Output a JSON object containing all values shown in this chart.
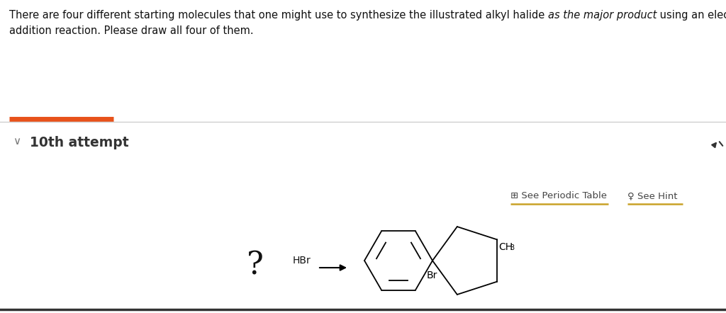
{
  "bg_color": "#ffffff",
  "text_color": "#111111",
  "orange_bar_color": "#e8521a",
  "separator_color": "#d0d0d0",
  "link_color": "#c9a227",
  "attempt_color": "#333333",
  "normal1": "There are four different starting molecules that one might use to synthesize the illustrated alkyl halide ",
  "italic_part": "as the major product",
  "normal2": " using an electrophilic",
  "line2": "addition reaction. Please draw all four of them.",
  "attempt_text": "10th attempt",
  "periodic_label": "⦾ See Periodic Table",
  "hint_label": "⍵ See Hint",
  "question_mark": "?",
  "hbr_label": "HBr",
  "br_label": "Br",
  "ch3_label": "CH",
  "ch3_sub": "3",
  "font_size_body": 10.5,
  "font_size_attempt": 13.5,
  "font_size_links": 9.5,
  "font_size_q": 32,
  "font_size_hbr": 10,
  "font_size_labels": 10
}
